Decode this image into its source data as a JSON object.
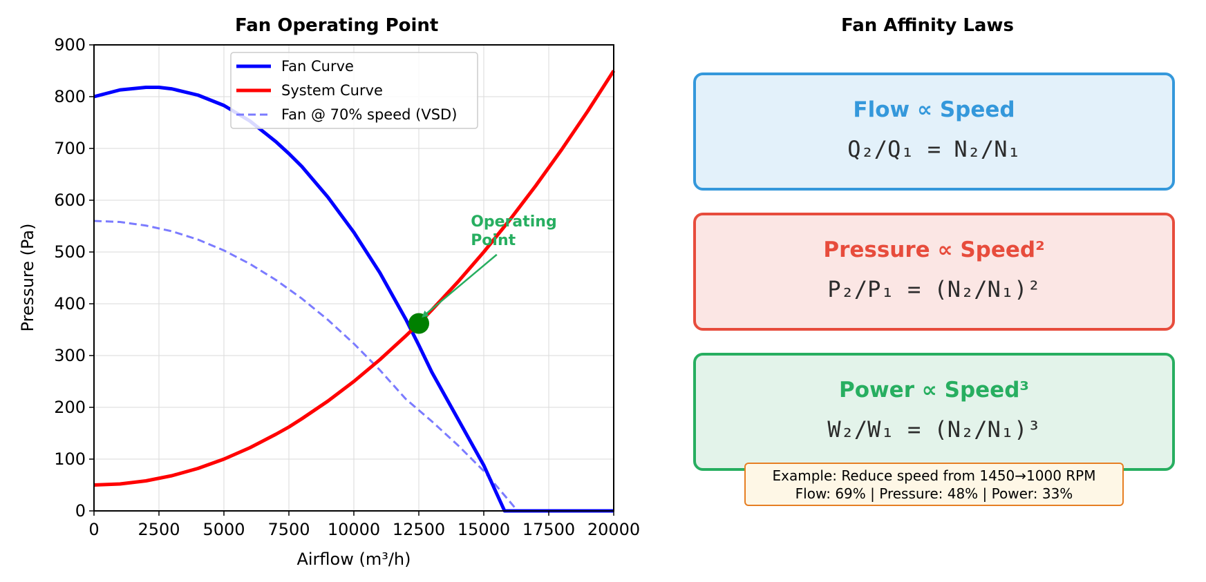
{
  "left_panel_title": "Fan Operating Point",
  "right_panel_title": "Fan Affinity Laws",
  "chart_data": {
    "type": "line",
    "title": "Fan Operating Point",
    "xlabel": "Airflow (m³/h)",
    "ylabel": "Pressure (Pa)",
    "xlim": [
      0,
      20000
    ],
    "ylim": [
      0,
      900
    ],
    "xticks": [
      0,
      2500,
      5000,
      7500,
      10000,
      12500,
      15000,
      17500,
      20000
    ],
    "yticks": [
      0,
      100,
      200,
      300,
      400,
      500,
      600,
      700,
      800,
      900
    ],
    "grid": true,
    "legend_position": "top-center",
    "series": [
      {
        "name": "Fan Curve",
        "color": "#0000ff",
        "style": "solid",
        "x": [
          0,
          1000,
          2000,
          2500,
          3000,
          4000,
          5000,
          6000,
          7000,
          7500,
          8000,
          9000,
          10000,
          11000,
          12000,
          12500,
          13000,
          14000,
          15000,
          15800,
          16000,
          17000,
          18000,
          19000,
          20000
        ],
        "y": [
          800,
          813,
          818,
          818,
          815,
          803,
          783,
          753,
          713,
          690,
          665,
          606,
          538,
          460,
          370,
          320,
          268,
          178,
          88,
          0,
          0,
          0,
          0,
          0,
          0
        ]
      },
      {
        "name": "System Curve",
        "color": "#ff0000",
        "style": "solid",
        "x": [
          0,
          1000,
          2000,
          3000,
          4000,
          5000,
          6000,
          7000,
          7500,
          8000,
          9000,
          10000,
          11000,
          12000,
          12500,
          13000,
          14000,
          15000,
          16000,
          17000,
          18000,
          19000,
          20000
        ],
        "y": [
          50,
          52,
          58,
          68,
          82,
          100,
          122,
          148,
          162,
          178,
          212,
          250,
          292,
          338,
          362,
          388,
          442,
          500,
          562,
          628,
          698,
          772,
          850
        ]
      },
      {
        "name": "Fan @ 70% speed (VSD)",
        "color": "#7b7bff",
        "style": "dashed",
        "x": [
          0,
          1000,
          2000,
          3000,
          4000,
          5000,
          6000,
          7000,
          8000,
          9000,
          10000,
          11000,
          12000,
          13000,
          14000,
          15000,
          16000,
          16300,
          17000,
          18000,
          19000,
          20000
        ],
        "y": [
          560,
          558,
          551,
          540,
          524,
          503,
          477,
          446,
          410,
          369,
          323,
          272,
          216,
          173,
          127,
          77,
          18,
          0,
          0,
          0,
          0,
          0
        ]
      }
    ],
    "operating_point": {
      "x": 12500,
      "y": 362,
      "color": "#008000"
    },
    "annotation": {
      "lines": [
        "Operating",
        "Point"
      ],
      "color": "#27ae60",
      "text_x": 14500,
      "text_y": 560,
      "arrow_from": [
        15500,
        495
      ],
      "arrow_to": [
        12650,
        375
      ]
    }
  },
  "affinity_laws": [
    {
      "heading": "Flow ∝ Speed",
      "formula": "Q₂/Q₁ = N₂/N₁",
      "color": "#3498db",
      "background": "#e3f1fa"
    },
    {
      "heading": "Pressure ∝ Speed²",
      "formula": "P₂/P₁ = (N₂/N₁)²",
      "color": "#e74c3c",
      "background": "#fbe6e4"
    },
    {
      "heading": "Power ∝ Speed³",
      "formula": "W₂/W₁ = (N₂/N₁)³",
      "color": "#27ae60",
      "background": "#e3f3ea"
    }
  ],
  "example": {
    "line1": "Example: Reduce speed from 1450→1000 RPM",
    "line2": "Flow: 69% | Pressure: 48% | Power: 33%"
  }
}
